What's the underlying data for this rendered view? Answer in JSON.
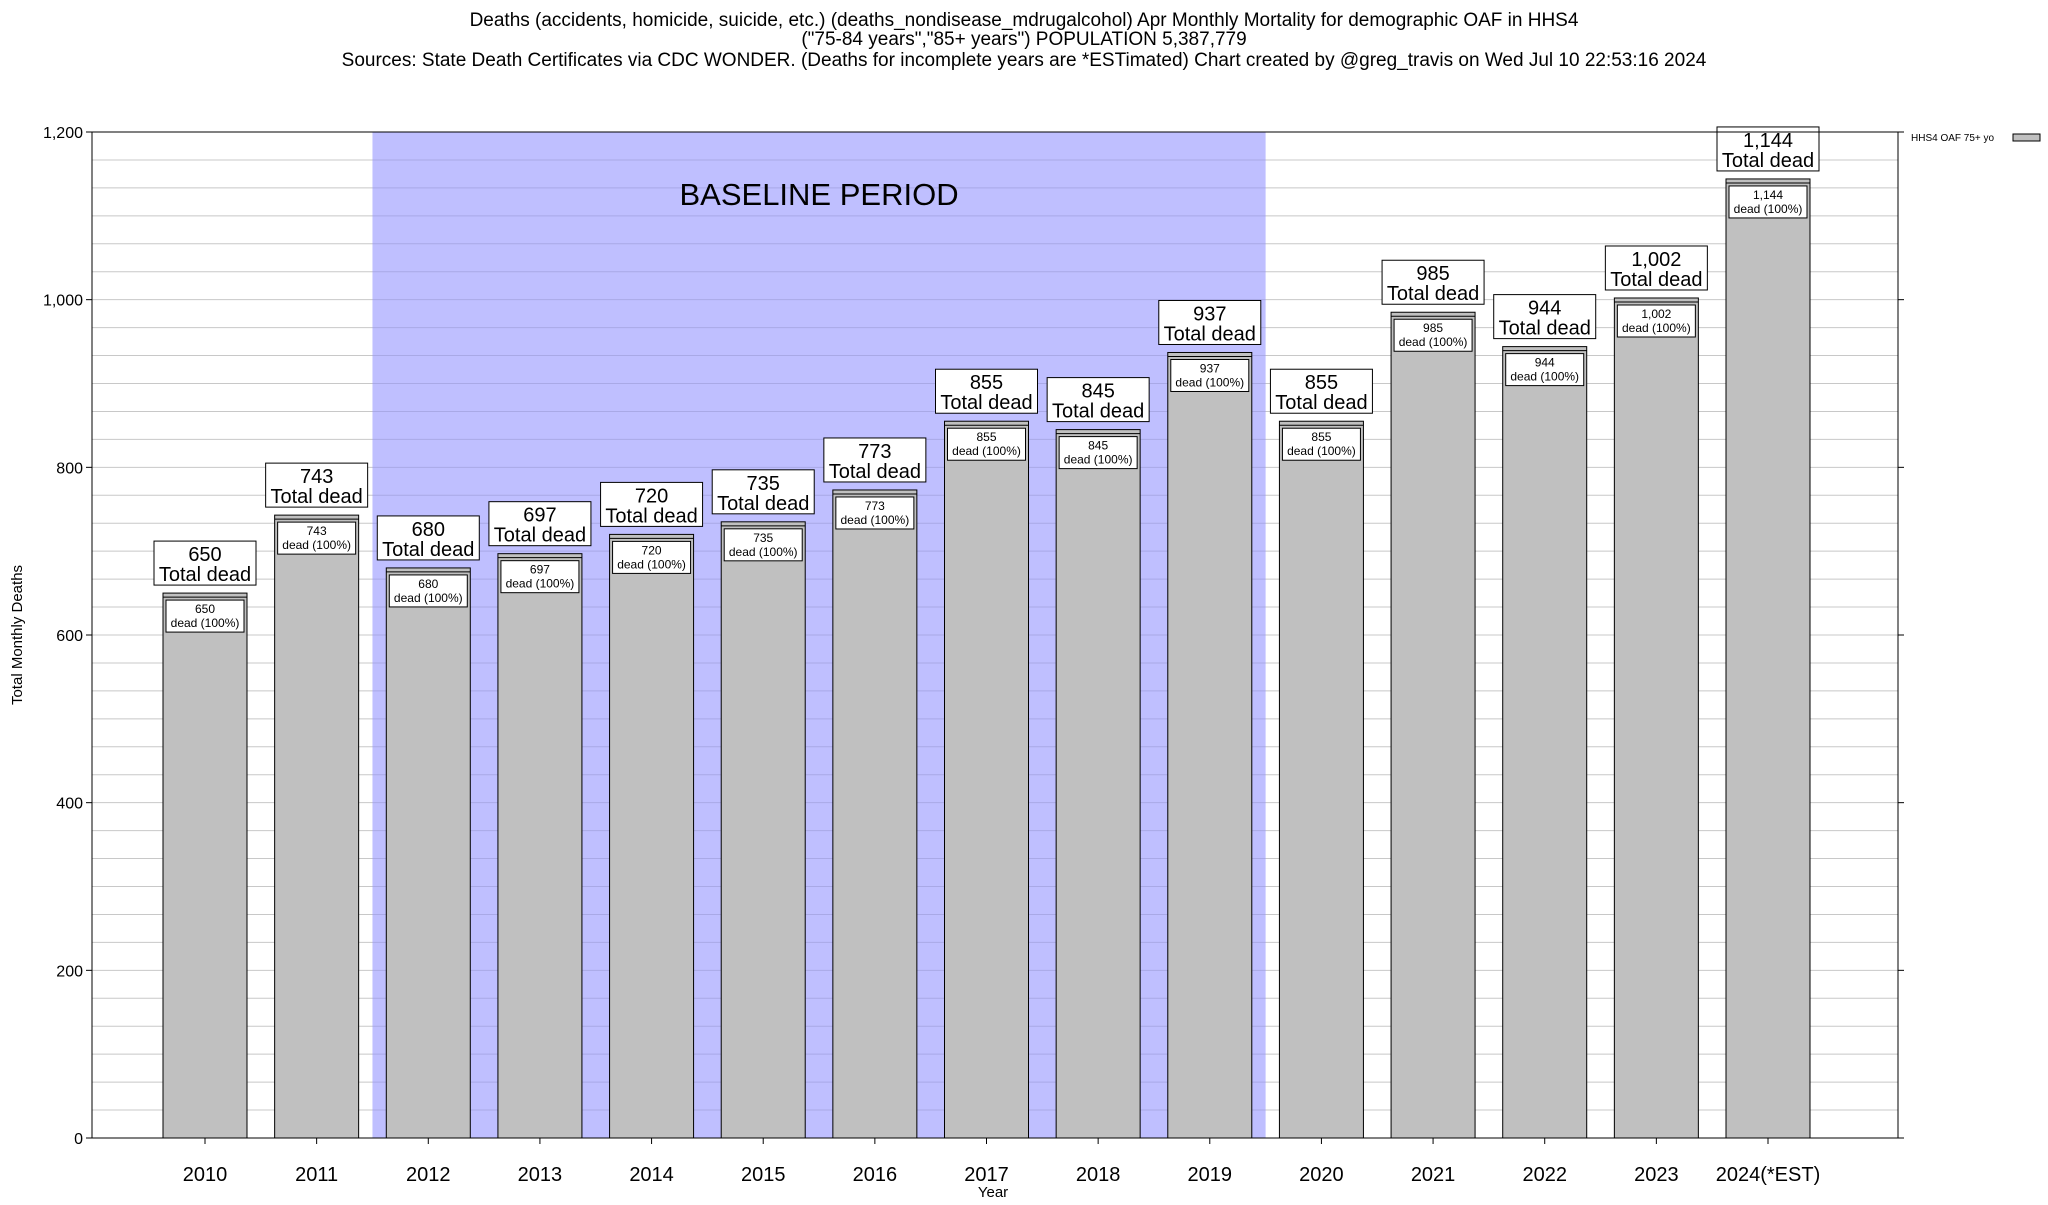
{
  "chart_data": {
    "type": "bar",
    "title_lines": [
      "Deaths (accidents, homicide, suicide, etc.) (deaths_nondisease_mdrugalcohol) Apr Monthly Mortality for demographic OAF in HHS4",
      "(\"75-84 years\",\"85+ years\") POPULATION 5,387,779",
      "Sources: State Death Certificates via CDC WONDER. (Deaths for incomplete years are *ESTimated)                Chart created by @greg_travis on Wed Jul 10 22:53:16 2024"
    ],
    "xlabel": "Year",
    "ylabel": "Total Monthly Deaths",
    "ylim": [
      0,
      1200
    ],
    "yticks": [
      0,
      200,
      400,
      600,
      800,
      1000,
      1200
    ],
    "ytick_labels": [
      "0",
      "200",
      "400",
      "600",
      "800",
      "1,000",
      "1,200"
    ],
    "grid": true,
    "categories": [
      "2010",
      "2011",
      "2012",
      "2013",
      "2014",
      "2015",
      "2016",
      "2017",
      "2018",
      "2019",
      "2020",
      "2021",
      "2022",
      "2023",
      "2024(*EST)"
    ],
    "values": [
      650,
      743,
      680,
      697,
      720,
      735,
      773,
      855,
      845,
      937,
      855,
      985,
      944,
      1002,
      1144
    ],
    "value_labels": [
      "650",
      "743",
      "680",
      "697",
      "720",
      "735",
      "773",
      "855",
      "845",
      "937",
      "855",
      "985",
      "944",
      "1,002",
      "1,144"
    ],
    "top_label_suffix": "Total dead",
    "inner_label_suffix": "dead (100%)",
    "baseline_period": {
      "label": "BASELINE PERIOD",
      "start": "2012",
      "end": "2019",
      "color": "#bfbfff"
    },
    "bar_color": "#c0c0c0",
    "legend": {
      "placement": "top-right",
      "label": "HHS4 OAF 75+ yo"
    }
  }
}
